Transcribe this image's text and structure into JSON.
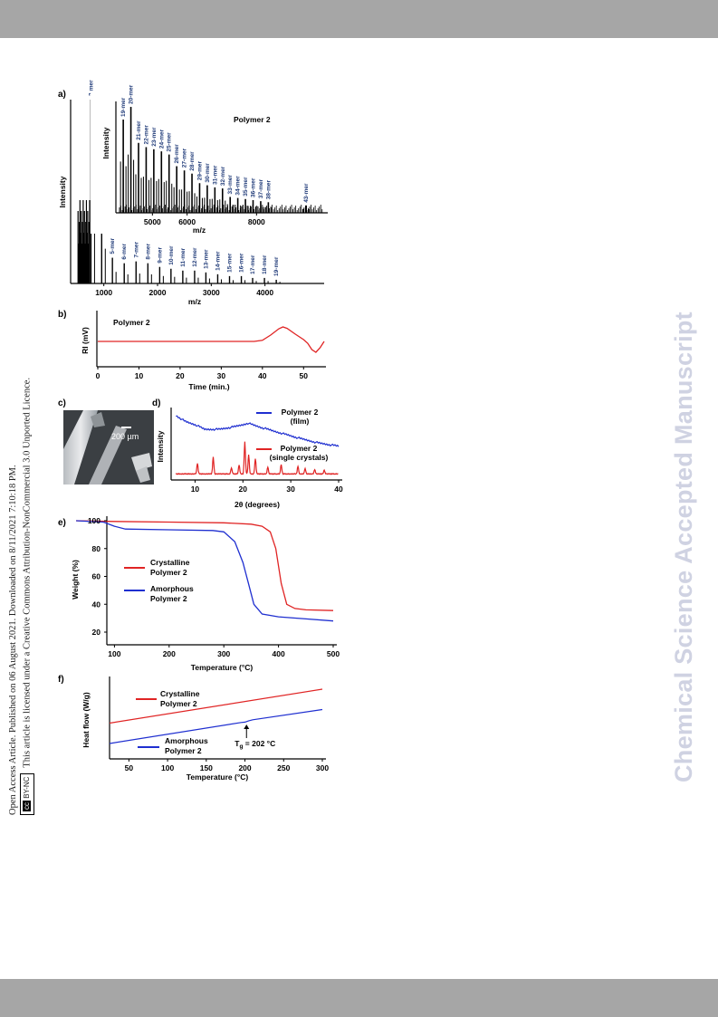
{
  "sidebar": {
    "line1": "Open Access Article. Published on 06 August 2021. Downloaded on 8/11/2021 7:10:18 PM.",
    "line2": "This article is licensed under a Creative Commons Attribution-NonCommercial 3.0 Unported Licence.",
    "badge": "BY-NC",
    "badge_cc": "cc"
  },
  "watermark": "Chemical Science Accepted Manuscript",
  "colors": {
    "red": "#e02424",
    "blue": "#1f2fd0",
    "label_blue": "#1f3a78",
    "band": "#a6a6a6"
  },
  "chart_data": [
    {
      "panel": "a)",
      "type": "line",
      "xlabel": "m/z",
      "ylabel": "Intensity",
      "xticks": [
        "1000",
        "2000",
        "3000",
        "4000"
      ],
      "peaks": [
        {
          "label": "3-mer",
          "x": 760,
          "y": 100
        },
        {
          "label": "4-mer",
          "x": 960,
          "y": 42
        },
        {
          "label": "5-mer",
          "x": 1160,
          "y": 14
        },
        {
          "label": "6-mer",
          "x": 1380,
          "y": 11
        },
        {
          "label": "7-mer",
          "x": 1600,
          "y": 12
        },
        {
          "label": "8-mer",
          "x": 1820,
          "y": 11
        },
        {
          "label": "9-mer",
          "x": 2040,
          "y": 9
        },
        {
          "label": "10-mer",
          "x": 2250,
          "y": 8
        },
        {
          "label": "11-mer",
          "x": 2470,
          "y": 7
        },
        {
          "label": "12-mer",
          "x": 2690,
          "y": 7
        },
        {
          "label": "13-mer",
          "x": 2900,
          "y": 6
        },
        {
          "label": "14-mer",
          "x": 3120,
          "y": 5
        },
        {
          "label": "15-mer",
          "x": 3340,
          "y": 4
        },
        {
          "label": "16-mer",
          "x": 3560,
          "y": 4
        },
        {
          "label": "17-mer",
          "x": 3770,
          "y": 3
        },
        {
          "label": "18-mer",
          "x": 3990,
          "y": 3
        },
        {
          "label": "19-mer",
          "x": 4210,
          "y": 2
        }
      ],
      "inset": {
        "title": "Polymer 2",
        "xlabel": "m/z",
        "ylabel": "Intensity",
        "xticks": [
          "5000",
          "6000",
          "8000"
        ],
        "peaks": [
          {
            "label": "19-mer",
            "x": 4160,
            "y": 88
          },
          {
            "label": "20-mer",
            "x": 4380,
            "y": 100
          },
          {
            "label": "21-mer",
            "x": 4600,
            "y": 66
          },
          {
            "label": "22-mer",
            "x": 4820,
            "y": 62
          },
          {
            "label": "23-mer",
            "x": 5040,
            "y": 60
          },
          {
            "label": "24-mer",
            "x": 5260,
            "y": 58
          },
          {
            "label": "25-mer",
            "x": 5480,
            "y": 55
          },
          {
            "label": "26-mer",
            "x": 5700,
            "y": 44
          },
          {
            "label": "27-mer",
            "x": 5920,
            "y": 40
          },
          {
            "label": "28-mer",
            "x": 6140,
            "y": 37
          },
          {
            "label": "29-mer",
            "x": 6360,
            "y": 28
          },
          {
            "label": "30-mer",
            "x": 6580,
            "y": 26
          },
          {
            "label": "31-mer",
            "x": 6800,
            "y": 24
          },
          {
            "label": "32-mer",
            "x": 7020,
            "y": 23
          },
          {
            "label": "33-mer",
            "x": 7240,
            "y": 15
          },
          {
            "label": "34-mer",
            "x": 7460,
            "y": 14
          },
          {
            "label": "35-mer",
            "x": 7680,
            "y": 13
          },
          {
            "label": "36-mer",
            "x": 7900,
            "y": 12
          },
          {
            "label": "37-mer",
            "x": 8120,
            "y": 11
          },
          {
            "label": "38-mer",
            "x": 8340,
            "y": 10
          },
          {
            "label": "43-mer",
            "x": 9430,
            "y": 7
          }
        ]
      }
    },
    {
      "panel": "b)",
      "type": "line",
      "title": "Polymer 2",
      "xlabel": "Time (min.)",
      "ylabel": "RI (mV)",
      "xticks": [
        "0",
        "10",
        "20",
        "30",
        "40",
        "50"
      ],
      "series": [
        {
          "name": "Polymer 2",
          "color": "#e02424",
          "points": [
            [
              0,
              0
            ],
            [
              38,
              0
            ],
            [
              40,
              0.06
            ],
            [
              42,
              0.35
            ],
            [
              44,
              0.7
            ],
            [
              45,
              0.8
            ],
            [
              46,
              0.72
            ],
            [
              48,
              0.4
            ],
            [
              50,
              0.1
            ],
            [
              51,
              -0.1
            ],
            [
              52,
              -0.45
            ],
            [
              53,
              -0.6
            ],
            [
              54,
              -0.35
            ],
            [
              55,
              0
            ]
          ]
        }
      ]
    },
    {
      "panel": "c)",
      "type": "image",
      "scale_bar": "200 µm"
    },
    {
      "panel": "d)",
      "type": "line",
      "xlabel": "2θ (degrees)",
      "ylabel": "Intensity",
      "xticks": [
        "10",
        "20",
        "30",
        "40"
      ],
      "series": [
        {
          "name": "Polymer 2 (film)",
          "legend": [
            "Polymer 2",
            "(film)"
          ],
          "color": "#1f2fd0",
          "points": [
            [
              6,
              0.78
            ],
            [
              8,
              0.7
            ],
            [
              10,
              0.66
            ],
            [
              12,
              0.6
            ],
            [
              15,
              0.6
            ],
            [
              18,
              0.63
            ],
            [
              20,
              0.66
            ],
            [
              21,
              0.68
            ],
            [
              24,
              0.62
            ],
            [
              28,
              0.55
            ],
            [
              32,
              0.48
            ],
            [
              36,
              0.42
            ],
            [
              40,
              0.38
            ]
          ]
        },
        {
          "name": "Polymer 2 (single crystals)",
          "legend": [
            "Polymer 2",
            "(single crystals)"
          ],
          "color": "#e02424",
          "peaks": [
            [
              10.5,
              0.14
            ],
            [
              13.8,
              0.22
            ],
            [
              17.6,
              0.08
            ],
            [
              19.2,
              0.12
            ],
            [
              20.4,
              0.42
            ],
            [
              21.2,
              0.25
            ],
            [
              22.6,
              0.2
            ],
            [
              25.2,
              0.09
            ],
            [
              28,
              0.12
            ],
            [
              31.5,
              0.1
            ],
            [
              33,
              0.07
            ],
            [
              35,
              0.06
            ],
            [
              37,
              0.05
            ]
          ],
          "baseline": 0.02
        }
      ]
    },
    {
      "panel": "e)",
      "type": "line",
      "xlabel": "Temperature (°C)",
      "ylabel": "Weight (%)",
      "xticks": [
        "100",
        "200",
        "300",
        "400",
        "500"
      ],
      "yticks": [
        "100",
        "80",
        "60",
        "40",
        "20"
      ],
      "series": [
        {
          "name": "Crystalline Polymer 2",
          "legend": [
            "Crystalline",
            "Polymer 2"
          ],
          "color": "#e02424",
          "points": [
            [
              30,
              100
            ],
            [
              100,
              99.5
            ],
            [
              200,
              99
            ],
            [
              300,
              98.5
            ],
            [
              350,
              97.5
            ],
            [
              370,
              96
            ],
            [
              385,
              92
            ],
            [
              395,
              80
            ],
            [
              405,
              55
            ],
            [
              415,
              40
            ],
            [
              430,
              37
            ],
            [
              450,
              36
            ],
            [
              500,
              35.5
            ]
          ]
        },
        {
          "name": "Amorphous Polymer 2",
          "legend": [
            "Amorphous",
            "Polymer 2"
          ],
          "color": "#1f2fd0",
          "points": [
            [
              30,
              100
            ],
            [
              80,
              99
            ],
            [
              100,
              96
            ],
            [
              120,
              94
            ],
            [
              200,
              93.5
            ],
            [
              280,
              93
            ],
            [
              300,
              92
            ],
            [
              320,
              85
            ],
            [
              335,
              70
            ],
            [
              345,
              55
            ],
            [
              355,
              40
            ],
            [
              370,
              33
            ],
            [
              400,
              31
            ],
            [
              450,
              29.5
            ],
            [
              500,
              28
            ]
          ]
        }
      ]
    },
    {
      "panel": "f)",
      "type": "line",
      "xlabel": "Temperature (°C)",
      "ylabel": "Heat flow (W/g)",
      "xticks": [
        "50",
        "100",
        "150",
        "200",
        "250",
        "300"
      ],
      "annotation": {
        "label": "T",
        "sub": "g",
        "suffix": " = 202 °C",
        "x": 202
      },
      "series": [
        {
          "name": "Crystalline Polymer 2",
          "legend": [
            "Crystalline",
            "Polymer 2"
          ],
          "color": "#e02424",
          "points": [
            [
              25,
              0.6
            ],
            [
              300,
              1.6
            ]
          ]
        },
        {
          "name": "Amorphous Polymer 2",
          "legend": [
            "Amorphous",
            "Polymer 2"
          ],
          "color": "#1f2fd0",
          "points": [
            [
              25,
              0.0
            ],
            [
              195,
              0.62
            ],
            [
              200,
              0.63
            ],
            [
              205,
              0.67
            ],
            [
              210,
              0.7
            ],
            [
              300,
              1.0
            ]
          ]
        }
      ]
    }
  ]
}
